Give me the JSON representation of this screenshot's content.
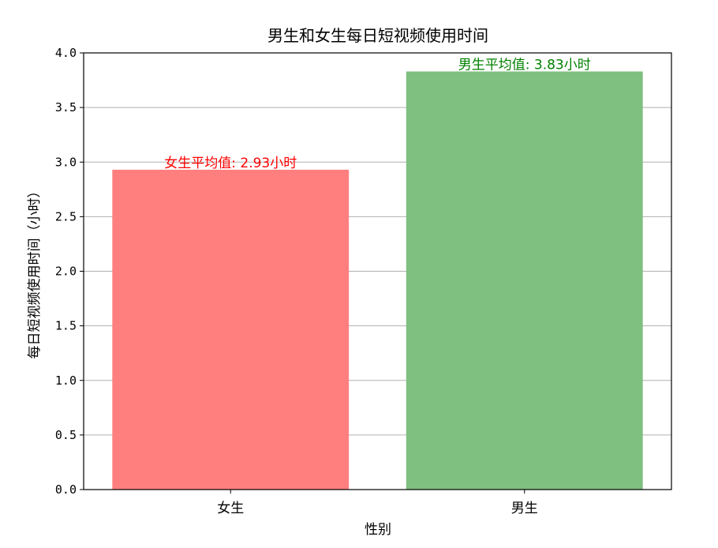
{
  "chart_data": {
    "type": "bar",
    "title": "男生和女生每日短视频使用时间",
    "xlabel": "性别",
    "ylabel": "每日短视频使用时间（小时）",
    "categories": [
      "女生",
      "男生"
    ],
    "values": [
      2.93,
      3.83
    ],
    "colors": [
      "#ff7f7f",
      "#7fbf7f"
    ],
    "annotations": [
      {
        "text": "女生平均值: 2.93小时",
        "color": "#ff0000",
        "category": "女生",
        "value": 2.93
      },
      {
        "text": "男生平均值: 3.83小时",
        "color": "#008000",
        "category": "男生",
        "value": 3.83
      }
    ],
    "ylim": [
      0,
      4.0
    ],
    "yticks": [
      "0.0",
      "0.5",
      "1.0",
      "1.5",
      "2.0",
      "2.5",
      "3.0",
      "3.5",
      "4.0"
    ],
    "grid": "y-axis",
    "grid_color": "#b0b0b0"
  }
}
